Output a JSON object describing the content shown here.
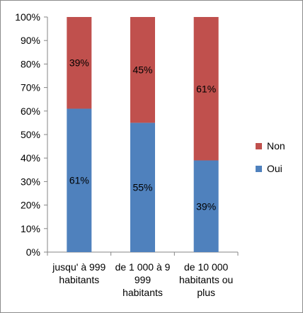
{
  "chart_data": {
    "type": "bar",
    "stacked": true,
    "categories": [
      [
        "jusqu' à 999",
        "habitants"
      ],
      [
        "de 1 000 à 9",
        "999",
        "habitants"
      ],
      [
        "de 10 000",
        "habitants ou",
        "plus"
      ]
    ],
    "series": [
      {
        "name": "Oui",
        "color": "#4f81bd",
        "values": [
          61,
          55,
          39
        ],
        "labels": [
          "61%",
          "55%",
          "39%"
        ]
      },
      {
        "name": "Non",
        "color": "#c0504d",
        "values": [
          39,
          45,
          61
        ],
        "labels": [
          "39%",
          "45%",
          "61%"
        ]
      }
    ],
    "yticks": [
      "0%",
      "10%",
      "20%",
      "30%",
      "40%",
      "50%",
      "60%",
      "70%",
      "80%",
      "90%",
      "100%"
    ],
    "ylim": [
      0,
      100
    ],
    "grid": false,
    "legend_position": "right",
    "legend_order": [
      "Non",
      "Oui"
    ]
  }
}
